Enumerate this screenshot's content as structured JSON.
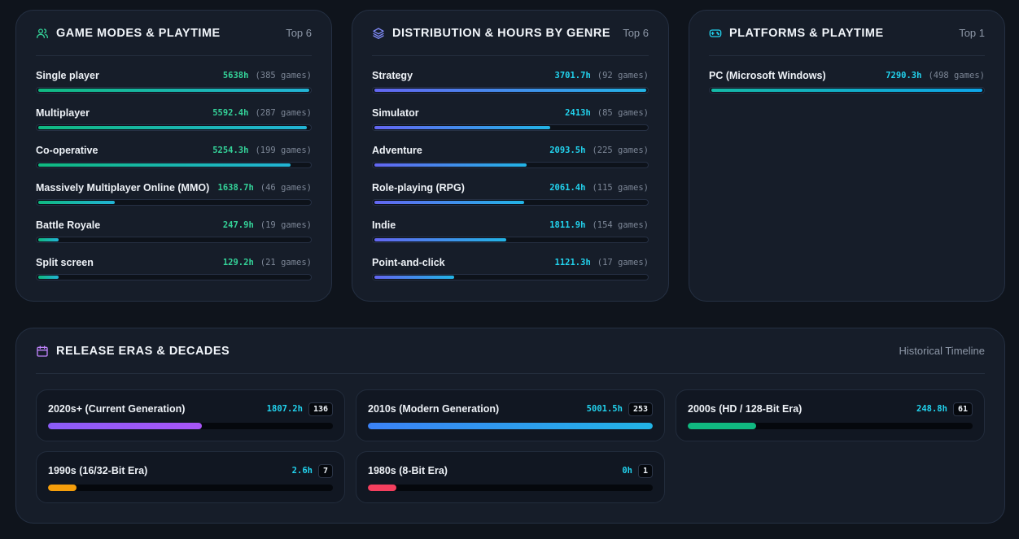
{
  "game_modes": {
    "title": "GAME MODES & PLAYTIME",
    "meta": "Top 6",
    "icon": "users-icon",
    "items": [
      {
        "name": "Single player",
        "hours": "5638h",
        "games": "(385 games)",
        "pct": 1.0
      },
      {
        "name": "Multiplayer",
        "hours": "5592.4h",
        "games": "(287 games)",
        "pct": 0.992
      },
      {
        "name": "Co-operative",
        "hours": "5254.3h",
        "games": "(199 games)",
        "pct": 0.932
      },
      {
        "name": "Massively Multiplayer Online (MMO)",
        "hours": "1638.7h",
        "games": "(46 games)",
        "pct": 0.291
      },
      {
        "name": "Battle Royale",
        "hours": "247.9h",
        "games": "(19 games)",
        "pct": 0.085
      },
      {
        "name": "Split screen",
        "hours": "129.2h",
        "games": "(21 games)",
        "pct": 0.085
      }
    ]
  },
  "genres": {
    "title": "DISTRIBUTION & HOURS BY GENRE",
    "meta": "Top 6",
    "icon": "layers-icon",
    "items": [
      {
        "name": "Strategy",
        "hours": "3701.7h",
        "games": "(92 games)",
        "pct": 1.0
      },
      {
        "name": "Simulator",
        "hours": "2413h",
        "games": "(85 games)",
        "pct": 0.652
      },
      {
        "name": "Adventure",
        "hours": "2093.5h",
        "games": "(225 games)",
        "pct": 0.566
      },
      {
        "name": "Role-playing (RPG)",
        "hours": "2061.4h",
        "games": "(115 games)",
        "pct": 0.557
      },
      {
        "name": "Indie",
        "hours": "1811.9h",
        "games": "(154 games)",
        "pct": 0.49
      },
      {
        "name": "Point-and-click",
        "hours": "1121.3h",
        "games": "(17 games)",
        "pct": 0.303
      }
    ]
  },
  "platforms": {
    "title": "PLATFORMS & PLAYTIME",
    "meta": "Top 1",
    "icon": "gamepad-icon",
    "items": [
      {
        "name": "PC (Microsoft Windows)",
        "hours": "7290.3h",
        "games": "(498 games)",
        "pct": 1.0
      }
    ]
  },
  "eras": {
    "title": "RELEASE ERAS & DECADES",
    "meta": "Historical Timeline",
    "icon": "calendar-icon",
    "items": [
      {
        "name": "2020s+ (Current Generation)",
        "hours": "1807.2h",
        "count": "136",
        "pct": 0.54,
        "color": "#a855f7"
      },
      {
        "name": "2010s (Modern Generation)",
        "hours": "5001.5h",
        "count": "253",
        "pct": 1.0,
        "color": "#3b82f6"
      },
      {
        "name": "2000s (HD / 128-Bit Era)",
        "hours": "248.8h",
        "count": "61",
        "pct": 0.24,
        "color": "#10b981"
      },
      {
        "name": "1990s (16/32-Bit Era)",
        "hours": "2.6h",
        "count": "7",
        "pct": 0.1,
        "color": "#f59e0b"
      },
      {
        "name": "1980s (8-Bit Era)",
        "hours": "0h",
        "count": "1",
        "pct": 0.1,
        "color": "#f43f5e"
      }
    ]
  }
}
